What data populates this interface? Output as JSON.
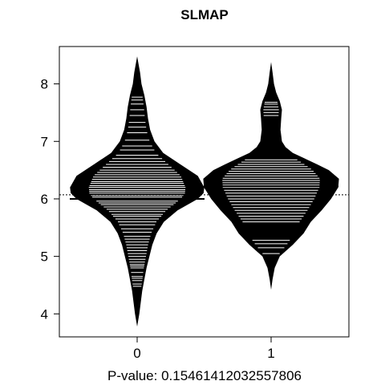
{
  "chart_data": {
    "type": "beanplot",
    "title": "SLMAP",
    "xlabel": "P-value: 0.15461412032557806",
    "ylabel": "",
    "categories": [
      "0",
      "1"
    ],
    "yticks": [
      4,
      5,
      6,
      7,
      8
    ],
    "ylim": [
      3.6,
      8.65
    ],
    "grid": false,
    "legend": "none",
    "overall_mean": 6.07,
    "colors": {
      "bean": "#000000",
      "lines": "#ffffff",
      "background": "#ffffff"
    },
    "beans": [
      {
        "category": "0",
        "mean": 6.0,
        "range": [
          3.78,
          8.48
        ],
        "density": [
          [
            3.78,
            0.0
          ],
          [
            4.0,
            0.03
          ],
          [
            4.2,
            0.05
          ],
          [
            4.4,
            0.07
          ],
          [
            4.6,
            0.1
          ],
          [
            4.8,
            0.13
          ],
          [
            5.0,
            0.17
          ],
          [
            5.2,
            0.21
          ],
          [
            5.4,
            0.27
          ],
          [
            5.6,
            0.37
          ],
          [
            5.8,
            0.56
          ],
          [
            6.0,
            0.84
          ],
          [
            6.1,
            0.92
          ],
          [
            6.2,
            0.93
          ],
          [
            6.4,
            0.84
          ],
          [
            6.6,
            0.6
          ],
          [
            6.8,
            0.36
          ],
          [
            7.0,
            0.24
          ],
          [
            7.2,
            0.18
          ],
          [
            7.4,
            0.15
          ],
          [
            7.6,
            0.13
          ],
          [
            7.8,
            0.1
          ],
          [
            8.0,
            0.06
          ],
          [
            8.2,
            0.04
          ],
          [
            8.48,
            0.0
          ]
        ],
        "observations": [
          4.48,
          4.52,
          4.58,
          4.62,
          4.65,
          4.72,
          4.8,
          4.83,
          4.86,
          4.9,
          4.95,
          5.0,
          5.05,
          5.1,
          5.15,
          5.2,
          5.25,
          5.3,
          5.35,
          5.42,
          5.48,
          5.55,
          5.6,
          5.65,
          5.7,
          5.73,
          5.78,
          5.82,
          5.86,
          5.9,
          5.93,
          5.96,
          6.0,
          6.03,
          6.06,
          6.1,
          6.13,
          6.16,
          6.2,
          6.23,
          6.27,
          6.3,
          6.34,
          6.38,
          6.42,
          6.46,
          6.5,
          6.55,
          6.6,
          6.65,
          6.7,
          6.76,
          6.85,
          6.92,
          7.02,
          7.15,
          7.25,
          7.33,
          7.45,
          7.55,
          7.65,
          7.72,
          7.77
        ]
      },
      {
        "category": "1",
        "mean": 6.22,
        "range": [
          4.42,
          8.38
        ],
        "density": [
          [
            4.42,
            0.0
          ],
          [
            4.6,
            0.02
          ],
          [
            4.8,
            0.05
          ],
          [
            5.0,
            0.12
          ],
          [
            5.2,
            0.3
          ],
          [
            5.4,
            0.45
          ],
          [
            5.6,
            0.55
          ],
          [
            5.8,
            0.7
          ],
          [
            6.0,
            0.83
          ],
          [
            6.2,
            0.93
          ],
          [
            6.35,
            0.94
          ],
          [
            6.5,
            0.8
          ],
          [
            6.6,
            0.64
          ],
          [
            6.7,
            0.47
          ],
          [
            6.8,
            0.3
          ],
          [
            6.9,
            0.2
          ],
          [
            7.0,
            0.15
          ],
          [
            7.2,
            0.13
          ],
          [
            7.4,
            0.14
          ],
          [
            7.55,
            0.15
          ],
          [
            7.7,
            0.12
          ],
          [
            7.85,
            0.07
          ],
          [
            8.0,
            0.04
          ],
          [
            8.2,
            0.02
          ],
          [
            8.38,
            0.0
          ]
        ],
        "observations": [
          5.05,
          5.15,
          5.22,
          5.28,
          5.6,
          5.65,
          5.7,
          5.75,
          5.8,
          5.85,
          5.9,
          5.95,
          6.0,
          6.05,
          6.1,
          6.15,
          6.2,
          6.24,
          6.28,
          6.32,
          6.36,
          6.4,
          6.44,
          6.48,
          6.52,
          6.56,
          6.6,
          6.64,
          6.68,
          7.45,
          7.5,
          7.55,
          7.6,
          7.65,
          7.68
        ]
      }
    ]
  }
}
